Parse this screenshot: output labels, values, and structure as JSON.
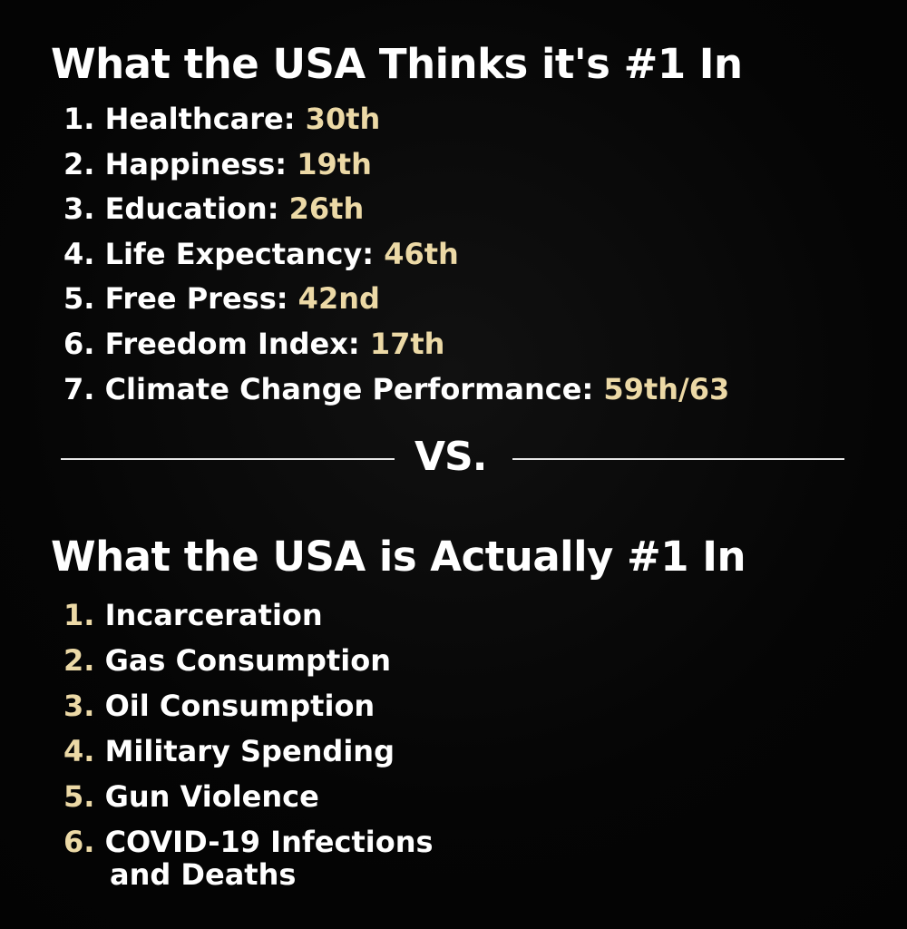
{
  "section_top": {
    "title": "What the USA Thinks it's #1 In",
    "items": [
      {
        "number": "1.",
        "label": "Healthcare:",
        "rank": "30th"
      },
      {
        "number": "2.",
        "label": "Happiness:",
        "rank": "19th"
      },
      {
        "number": "3.",
        "label": "Education:",
        "rank": "26th"
      },
      {
        "number": "4.",
        "label": "Life Expectancy:",
        "rank": "46th"
      },
      {
        "number": "5.",
        "label": "Free Press:",
        "rank": "42nd"
      },
      {
        "number": "6.",
        "label": "Freedom Index:",
        "rank": "17th"
      },
      {
        "number": "7.",
        "label": "Climate Change Performance:",
        "rank": "59th/63"
      }
    ]
  },
  "divider": {
    "text": "VS."
  },
  "section_bottom": {
    "title": "What the USA is Actually #1 In",
    "items": [
      {
        "number": "1.",
        "label": "Incarceration"
      },
      {
        "number": "2.",
        "label": "Gas Consumption"
      },
      {
        "number": "3.",
        "label": "Oil Consumption"
      },
      {
        "number": "4.",
        "label": "Military Spending"
      },
      {
        "number": "5.",
        "label": "Gun Violence"
      },
      {
        "number": "6.",
        "label": "COVID-19 Infections",
        "label_line2": "and Deaths"
      }
    ]
  },
  "colors": {
    "background": "#050505",
    "text": "#ffffff",
    "accent": "#ecd9a6"
  }
}
